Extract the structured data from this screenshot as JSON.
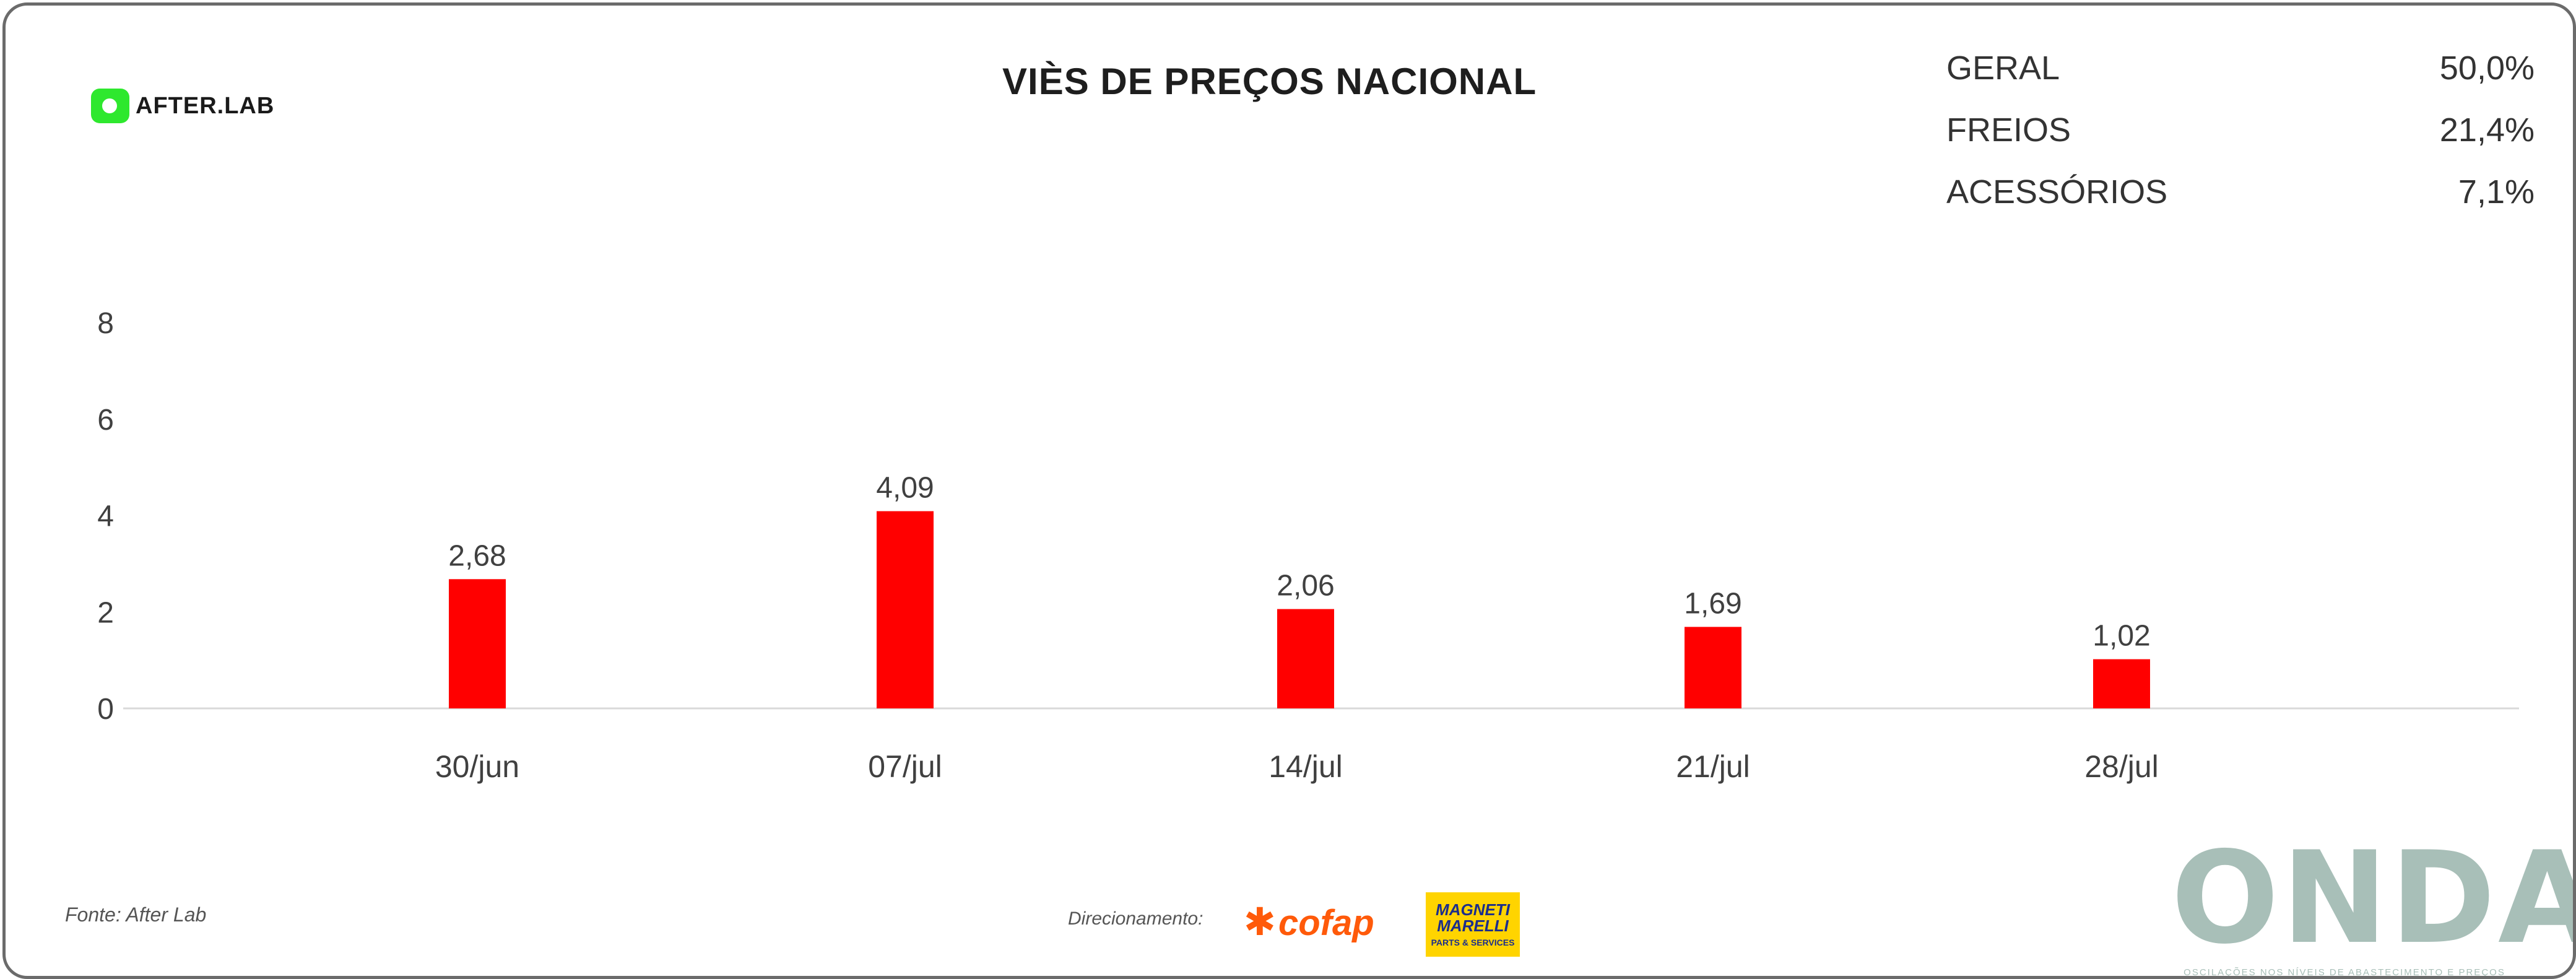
{
  "brand": {
    "afterlab": "AFTER.LAB",
    "onda": "ONDA",
    "onda_tagline": "OSCILAÇÕES NOS NÍVEIS DE ABASTECIMENTO E PREÇOS",
    "magneti_line1": "MAGNETI",
    "magneti_line2": "MARELLI",
    "magneti_line3": "PARTS & SERVICES",
    "cofap": "cofap"
  },
  "summary": [
    {
      "label": "GERAL",
      "value": "50,0%"
    },
    {
      "label": "FREIOS",
      "value": "21,4%"
    },
    {
      "label": "ACESSÓRIOS",
      "value": "7,1%"
    }
  ],
  "footer": {
    "source": "Fonte: After Lab",
    "direction": "Direcionamento:"
  },
  "colors": {
    "bar": "#ff0000",
    "accent_green": "#2ee82e",
    "onda": "#a8bfb8"
  },
  "chart_data": {
    "type": "bar",
    "title": "VIÈS DE PREÇOS NACIONAL",
    "categories": [
      "30/jun",
      "07/jul",
      "14/jul",
      "21/jul",
      "28/jul"
    ],
    "values": [
      2.68,
      4.09,
      2.06,
      1.69,
      1.02
    ],
    "value_labels": [
      "2,68",
      "4,09",
      "2,06",
      "1,69",
      "1,02"
    ],
    "yticks": [
      0,
      2,
      4,
      6,
      8
    ],
    "ylim": [
      0,
      8
    ],
    "xlabel": "",
    "ylabel": "",
    "grid": false
  }
}
